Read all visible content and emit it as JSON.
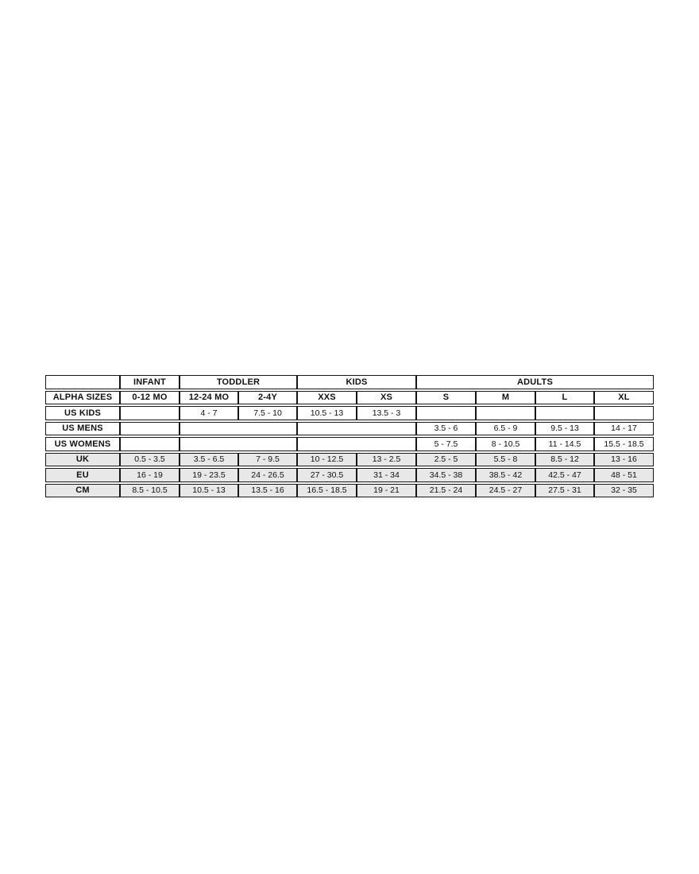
{
  "colors": {
    "page_bg": "#ffffff",
    "shaded_row_bg": "#e8e8e8",
    "border": "#161616",
    "text": "#111111"
  },
  "chart_data": {
    "type": "table",
    "header_groups": [
      {
        "label": "",
        "span": 1
      },
      {
        "label": "INFANT",
        "span": 1
      },
      {
        "label": "TODDLER",
        "span": 2
      },
      {
        "label": "KIDS",
        "span": 2
      },
      {
        "label": "ADULTS",
        "span": 4
      }
    ],
    "rows": [
      {
        "label": "ALPHA SIZES",
        "bold": true,
        "shaded": false,
        "cells": [
          {
            "t": "0-12 MO",
            "span": 1
          },
          {
            "t": "12-24 MO",
            "span": 1
          },
          {
            "t": "2-4Y",
            "span": 1
          },
          {
            "t": "XXS",
            "span": 1
          },
          {
            "t": "XS",
            "span": 1
          },
          {
            "t": "S",
            "span": 1
          },
          {
            "t": "M",
            "span": 1
          },
          {
            "t": "L",
            "span": 1
          },
          {
            "t": "XL",
            "span": 1
          }
        ]
      },
      {
        "label": "US KIDS",
        "bold": false,
        "shaded": false,
        "cells": [
          {
            "t": "",
            "span": 1
          },
          {
            "t": "4 - 7",
            "span": 1
          },
          {
            "t": "7.5 - 10",
            "span": 1
          },
          {
            "t": "10.5 - 13",
            "span": 1
          },
          {
            "t": "13.5 - 3",
            "span": 1
          },
          {
            "t": "",
            "span": 1
          },
          {
            "t": "",
            "span": 1
          },
          {
            "t": "",
            "span": 1
          },
          {
            "t": "",
            "span": 1
          }
        ]
      },
      {
        "label": "US MENS",
        "bold": false,
        "shaded": false,
        "cells": [
          {
            "t": "",
            "span": 1
          },
          {
            "t": "",
            "span": 2
          },
          {
            "t": "",
            "span": 2
          },
          {
            "t": "3.5 - 6",
            "span": 1
          },
          {
            "t": "6.5 - 9",
            "span": 1
          },
          {
            "t": "9.5 - 13",
            "span": 1
          },
          {
            "t": "14 - 17",
            "span": 1
          }
        ]
      },
      {
        "label": "US WOMENS",
        "bold": false,
        "shaded": false,
        "cells": [
          {
            "t": "",
            "span": 1
          },
          {
            "t": "",
            "span": 2
          },
          {
            "t": "",
            "span": 2
          },
          {
            "t": "5 - 7.5",
            "span": 1
          },
          {
            "t": "8 - 10.5",
            "span": 1
          },
          {
            "t": "11 - 14.5",
            "span": 1
          },
          {
            "t": "15.5 - 18.5",
            "span": 1
          }
        ]
      },
      {
        "label": "UK",
        "bold": false,
        "shaded": true,
        "cells": [
          {
            "t": "0.5 - 3.5",
            "span": 1
          },
          {
            "t": "3.5 - 6.5",
            "span": 1
          },
          {
            "t": "7 - 9.5",
            "span": 1
          },
          {
            "t": "10 - 12.5",
            "span": 1
          },
          {
            "t": "13 - 2.5",
            "span": 1
          },
          {
            "t": "2.5 - 5",
            "span": 1
          },
          {
            "t": "5.5 - 8",
            "span": 1
          },
          {
            "t": "8.5 - 12",
            "span": 1
          },
          {
            "t": "13 - 16",
            "span": 1
          }
        ]
      },
      {
        "label": "EU",
        "bold": false,
        "shaded": true,
        "cells": [
          {
            "t": "16 - 19",
            "span": 1
          },
          {
            "t": "19 - 23.5",
            "span": 1
          },
          {
            "t": "24 - 26.5",
            "span": 1
          },
          {
            "t": "27 - 30.5",
            "span": 1
          },
          {
            "t": "31 - 34",
            "span": 1
          },
          {
            "t": "34.5 - 38",
            "span": 1
          },
          {
            "t": "38.5 - 42",
            "span": 1
          },
          {
            "t": "42.5 - 47",
            "span": 1
          },
          {
            "t": "48 - 51",
            "span": 1
          }
        ]
      },
      {
        "label": "CM",
        "bold": false,
        "shaded": true,
        "cells": [
          {
            "t": "8.5 - 10.5",
            "span": 1
          },
          {
            "t": "10.5 - 13",
            "span": 1
          },
          {
            "t": "13.5 - 16",
            "span": 1
          },
          {
            "t": "16.5 - 18.5",
            "span": 1
          },
          {
            "t": "19 - 21",
            "span": 1
          },
          {
            "t": "21.5 - 24",
            "span": 1
          },
          {
            "t": "24.5 - 27",
            "span": 1
          },
          {
            "t": "27.5 - 31",
            "span": 1
          },
          {
            "t": "32 - 35",
            "span": 1
          }
        ]
      }
    ]
  }
}
